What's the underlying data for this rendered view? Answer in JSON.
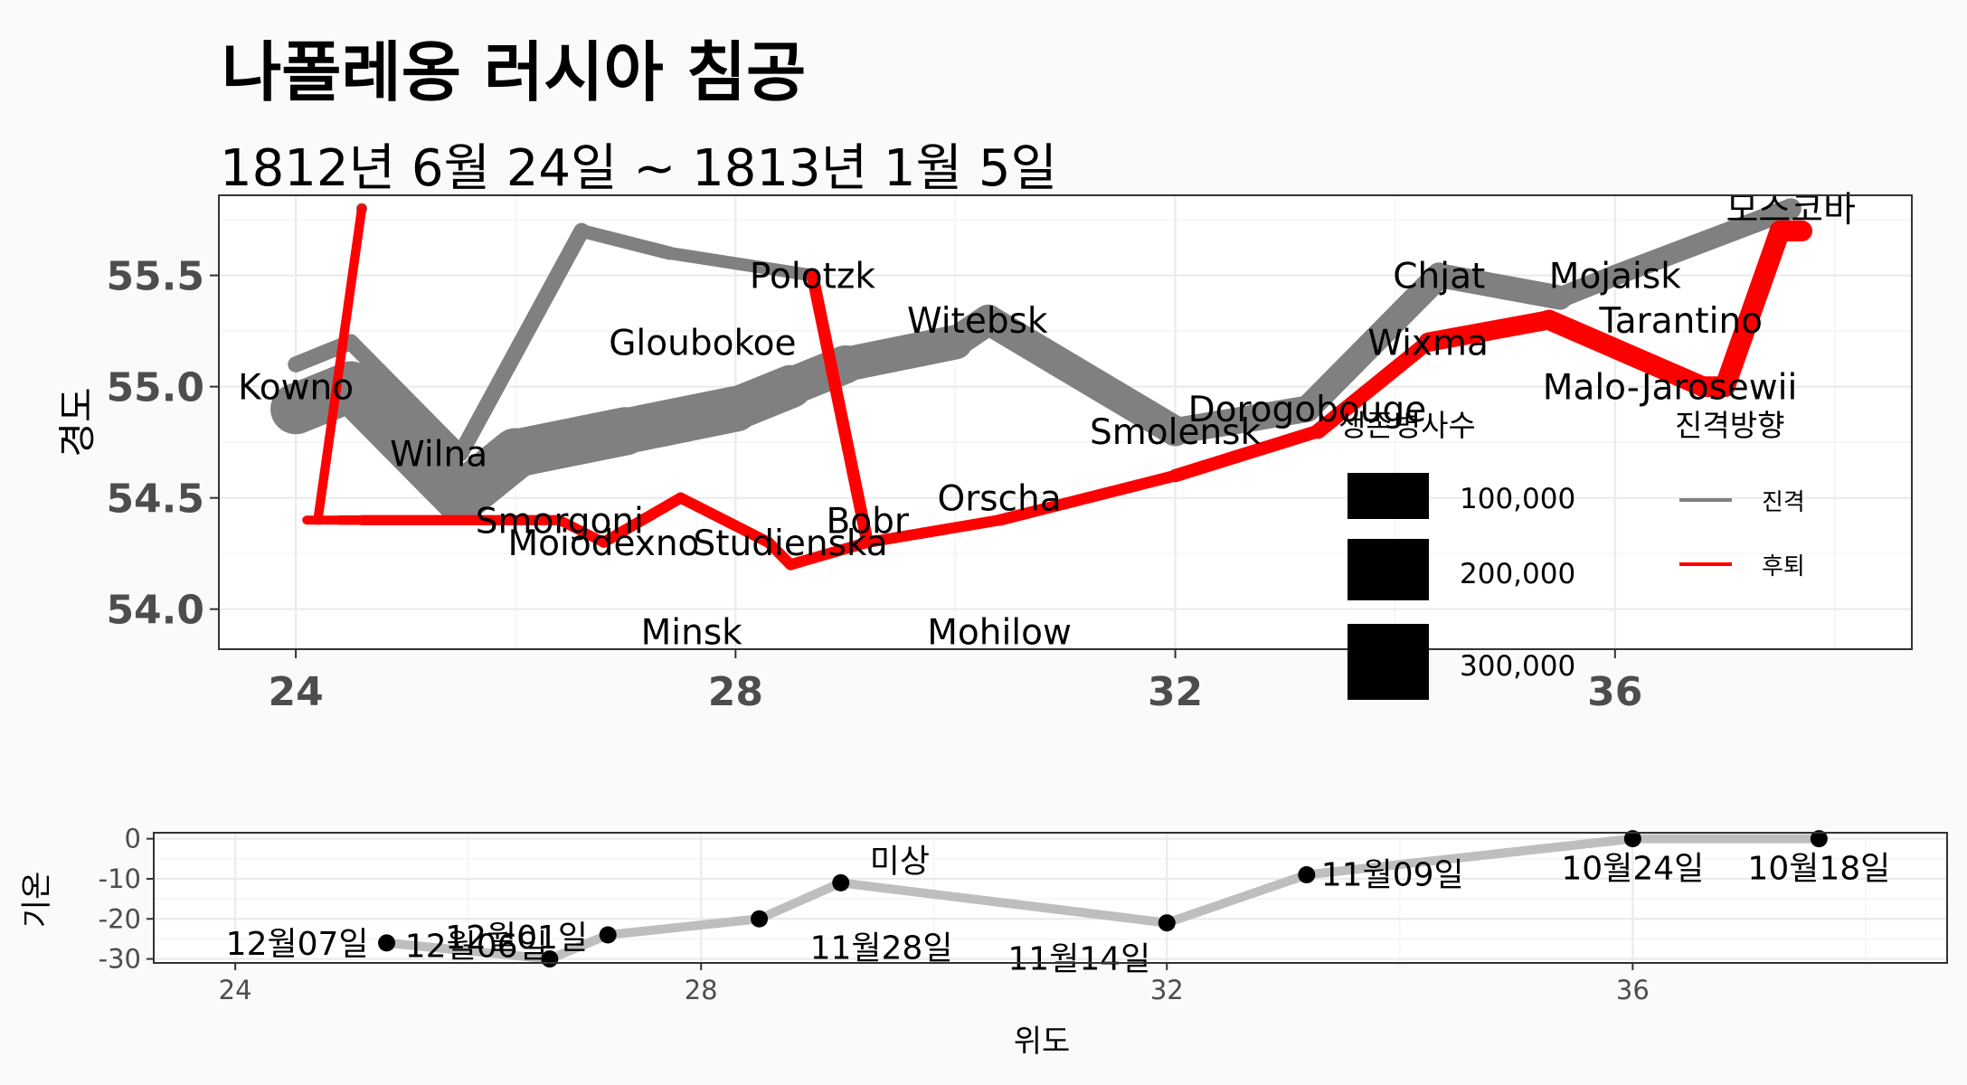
{
  "title": "나폴레옹 러시아 침공",
  "subtitle": "1812년 6월 24일 ~ 1813년 1월 5일",
  "chart_data": [
    {
      "type": "line",
      "ylabel": "경도",
      "xlim": [
        23.3,
        38.7
      ],
      "ylim": [
        53.82,
        55.86
      ],
      "x_ticks": [
        24,
        28,
        32,
        36
      ],
      "y_ticks": [
        54.0,
        54.5,
        55.0,
        55.5
      ],
      "y_tick_labels": [
        "54.0",
        "54.5",
        "55.0",
        "55.5"
      ],
      "legend_size": {
        "title": "생존병사수",
        "labels": [
          "100,000",
          "200,000",
          "300,000"
        ]
      },
      "legend_color": {
        "title": "진격방향",
        "items": [
          {
            "label": "진격",
            "color": "#808080"
          },
          {
            "label": "후퇴",
            "color": "#FF0000"
          }
        ]
      },
      "series": [
        {
          "direction": "A",
          "group": 1,
          "color": "#808080",
          "points": [
            {
              "lon": 24.0,
              "lat": 54.9,
              "survivors": 340000
            },
            {
              "lon": 24.5,
              "lat": 55.0,
              "survivors": 340000
            },
            {
              "lon": 25.5,
              "lat": 54.5,
              "survivors": 340000
            },
            {
              "lon": 26.0,
              "lat": 54.7,
              "survivors": 320000
            },
            {
              "lon": 27.0,
              "lat": 54.8,
              "survivors": 300000
            },
            {
              "lon": 28.0,
              "lat": 54.9,
              "survivors": 280000
            },
            {
              "lon": 28.5,
              "lat": 55.0,
              "survivors": 240000
            },
            {
              "lon": 29.0,
              "lat": 55.1,
              "survivors": 210000
            },
            {
              "lon": 30.0,
              "lat": 55.2,
              "survivors": 180000
            },
            {
              "lon": 30.3,
              "lat": 55.3,
              "survivors": 175000
            },
            {
              "lon": 32.0,
              "lat": 54.8,
              "survivors": 145000
            },
            {
              "lon": 33.2,
              "lat": 54.9,
              "survivors": 140000
            },
            {
              "lon": 34.4,
              "lat": 55.5,
              "survivors": 127100
            },
            {
              "lon": 35.5,
              "lat": 55.4,
              "survivors": 100000
            },
            {
              "lon": 36.0,
              "lat": 55.5,
              "survivors": 100000
            },
            {
              "lon": 37.6,
              "lat": 55.8,
              "survivors": 100000
            }
          ]
        },
        {
          "direction": "A",
          "group": 2,
          "color": "#808080",
          "points": [
            {
              "lon": 24.0,
              "lat": 55.1,
              "survivors": 60000
            },
            {
              "lon": 24.5,
              "lat": 55.2,
              "survivors": 60000
            },
            {
              "lon": 25.5,
              "lat": 54.7,
              "survivors": 60000
            },
            {
              "lon": 26.6,
              "lat": 55.7,
              "survivors": 40000
            },
            {
              "lon": 27.4,
              "lat": 55.6,
              "survivors": 33000
            },
            {
              "lon": 28.7,
              "lat": 55.5,
              "survivors": 33000
            }
          ]
        },
        {
          "direction": "A",
          "group": 3,
          "color": "#808080",
          "points": [
            {
              "lon": 24.6,
              "lat": 55.8,
              "survivors": 22000
            },
            {
              "lon": 24.6,
              "lat": 55.8,
              "survivors": 22000
            }
          ]
        },
        {
          "direction": "R",
          "group": 1,
          "color": "#FF0000",
          "points": [
            {
              "lon": 37.7,
              "lat": 55.7,
              "survivors": 100000
            },
            {
              "lon": 37.5,
              "lat": 55.7,
              "survivors": 98000
            },
            {
              "lon": 37.0,
              "lat": 55.0,
              "survivors": 97000
            },
            {
              "lon": 36.8,
              "lat": 55.0,
              "survivors": 96000
            },
            {
              "lon": 35.4,
              "lat": 55.3,
              "survivors": 87000
            },
            {
              "lon": 34.3,
              "lat": 55.2,
              "survivors": 55000
            },
            {
              "lon": 33.3,
              "lat": 54.8,
              "survivors": 37000
            },
            {
              "lon": 32.0,
              "lat": 54.6,
              "survivors": 24000
            },
            {
              "lon": 30.4,
              "lat": 54.4,
              "survivors": 20000
            },
            {
              "lon": 29.2,
              "lat": 54.3,
              "survivors": 20000
            },
            {
              "lon": 28.5,
              "lat": 54.2,
              "survivors": 20000
            },
            {
              "lon": 28.3,
              "lat": 54.3,
              "survivors": 20000
            },
            {
              "lon": 27.5,
              "lat": 54.5,
              "survivors": 20000
            },
            {
              "lon": 26.8,
              "lat": 54.3,
              "survivors": 12000
            },
            {
              "lon": 26.4,
              "lat": 54.4,
              "survivors": 14000
            },
            {
              "lon": 24.6,
              "lat": 54.4,
              "survivors": 8000
            },
            {
              "lon": 24.4,
              "lat": 54.4,
              "survivors": 4000
            },
            {
              "lon": 24.2,
              "lat": 54.4,
              "survivors": 4000
            },
            {
              "lon": 24.1,
              "lat": 54.4,
              "survivors": 4000
            }
          ]
        },
        {
          "direction": "R",
          "group": 2,
          "color": "#FF0000",
          "points": [
            {
              "lon": 28.7,
              "lat": 55.5,
              "survivors": 30000
            },
            {
              "lon": 29.2,
              "lat": 54.3,
              "survivors": 28000
            }
          ]
        },
        {
          "direction": "R",
          "group": 3,
          "color": "#FF0000",
          "points": [
            {
              "lon": 24.6,
              "lat": 55.8,
              "survivors": 6000
            },
            {
              "lon": 24.2,
              "lat": 54.4,
              "survivors": 6000
            }
          ]
        }
      ],
      "cities": [
        {
          "name": "Kowno",
          "lon": 24.0,
          "lat": 55.0
        },
        {
          "name": "Wilna",
          "lon": 25.3,
          "lat": 54.7
        },
        {
          "name": "Smorgoni",
          "lon": 26.4,
          "lat": 54.4
        },
        {
          "name": "Moiodexno",
          "lon": 26.8,
          "lat": 54.3
        },
        {
          "name": "Gloubokoe",
          "lon": 27.7,
          "lat": 55.2
        },
        {
          "name": "Minsk",
          "lon": 27.6,
          "lat": 53.9
        },
        {
          "name": "Studienska",
          "lon": 28.5,
          "lat": 54.3
        },
        {
          "name": "Polotzk",
          "lon": 28.7,
          "lat": 55.5
        },
        {
          "name": "Bobr",
          "lon": 29.2,
          "lat": 54.4
        },
        {
          "name": "Witebsk",
          "lon": 30.2,
          "lat": 55.3
        },
        {
          "name": "Orscha",
          "lon": 30.4,
          "lat": 54.5
        },
        {
          "name": "Mohilow",
          "lon": 30.4,
          "lat": 53.9
        },
        {
          "name": "Smolensk",
          "lon": 32.0,
          "lat": 54.8
        },
        {
          "name": "Dorogobouge",
          "lon": 33.2,
          "lat": 54.9
        },
        {
          "name": "Wixma",
          "lon": 34.3,
          "lat": 55.2
        },
        {
          "name": "Chjat",
          "lon": 34.4,
          "lat": 55.5
        },
        {
          "name": "Mojaisk",
          "lon": 36.0,
          "lat": 55.5
        },
        {
          "name": "모스코바",
          "lon": 37.6,
          "lat": 55.8
        },
        {
          "name": "Tarantino",
          "lon": 36.6,
          "lat": 55.3
        },
        {
          "name": "Malo-Jarosewii",
          "lon": 36.5,
          "lat": 55.0
        }
      ]
    },
    {
      "type": "line",
      "xlabel": "위도",
      "ylabel": "기온",
      "xlim": [
        23.3,
        38.7
      ],
      "ylim": [
        -31,
        1.5
      ],
      "x_ticks": [
        24,
        28,
        32,
        36
      ],
      "y_ticks": [
        0,
        -10,
        -20,
        -30
      ],
      "color": "#BEBEBE",
      "points": [
        {
          "lon": 37.6,
          "temp": 0,
          "label": "10월18일"
        },
        {
          "lon": 36.0,
          "temp": 0,
          "label": "10월24일"
        },
        {
          "lon": 33.2,
          "temp": -9,
          "label": "11월09일"
        },
        {
          "lon": 32.0,
          "temp": -21,
          "label": "11월14일"
        },
        {
          "lon": 29.2,
          "temp": -11,
          "label": "미상"
        },
        {
          "lon": 28.5,
          "temp": -20,
          "label": "11월28일"
        },
        {
          "lon": 27.2,
          "temp": -24,
          "label": "12월01일"
        },
        {
          "lon": 26.7,
          "temp": -30,
          "label": "12월06일"
        },
        {
          "lon": 25.3,
          "temp": -26,
          "label": "12월07일"
        }
      ]
    }
  ]
}
